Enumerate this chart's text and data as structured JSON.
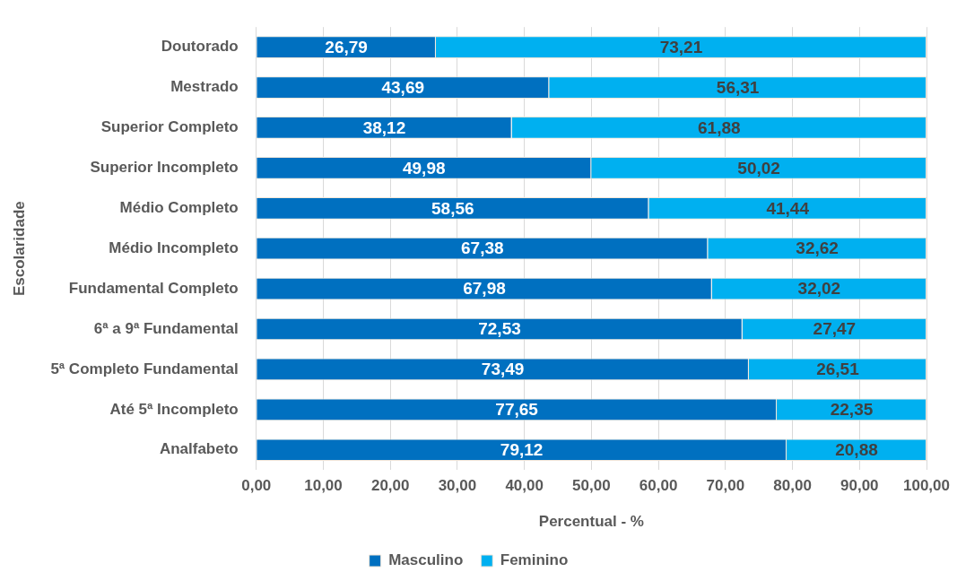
{
  "chart_data": {
    "type": "bar",
    "orientation": "horizontal",
    "stacked": true,
    "xlabel": "Percentual - %",
    "ylabel": "Escolaridade",
    "categories": [
      "Doutorado",
      "Mestrado",
      "Superior Completo",
      "Superior Incompleto",
      "Médio Completo",
      "Médio Incompleto",
      "Fundamental Completo",
      "6ª a 9ª Fundamental",
      "5ª Completo Fundamental",
      "Até 5ª Incompleto",
      "Analfabeto"
    ],
    "series": [
      {
        "name": "Masculino",
        "color": "#0070c0",
        "values": [
          26.79,
          43.69,
          38.12,
          49.98,
          58.56,
          67.38,
          67.98,
          72.53,
          73.49,
          77.65,
          79.12
        ],
        "value_labels": [
          "26,79",
          "43,69",
          "38,12",
          "49,98",
          "58,56",
          "67,38",
          "67,98",
          "72,53",
          "73,49",
          "77,65",
          "79,12"
        ]
      },
      {
        "name": "Feminino",
        "color": "#00b0f0",
        "values": [
          73.21,
          56.31,
          61.88,
          50.02,
          41.44,
          32.62,
          32.02,
          27.47,
          26.51,
          22.35,
          20.88
        ],
        "value_labels": [
          "73,21",
          "56,31",
          "61,88",
          "50,02",
          "41,44",
          "32,62",
          "32,02",
          "27,47",
          "26,51",
          "22,35",
          "20,88"
        ]
      }
    ],
    "xlim": [
      0,
      100
    ],
    "xticks": [
      {
        "value": 0,
        "label": "0,00"
      },
      {
        "value": 10,
        "label": "10,00"
      },
      {
        "value": 20,
        "label": "20,00"
      },
      {
        "value": 30,
        "label": "30,00"
      },
      {
        "value": 40,
        "label": "40,00"
      },
      {
        "value": 50,
        "label": "50,00"
      },
      {
        "value": 60,
        "label": "60,00"
      },
      {
        "value": 70,
        "label": "70,00"
      },
      {
        "value": 80,
        "label": "80,00"
      },
      {
        "value": 90,
        "label": "90,00"
      },
      {
        "value": 100,
        "label": "100,00"
      }
    ],
    "grid": "x",
    "legend": "bottom"
  }
}
